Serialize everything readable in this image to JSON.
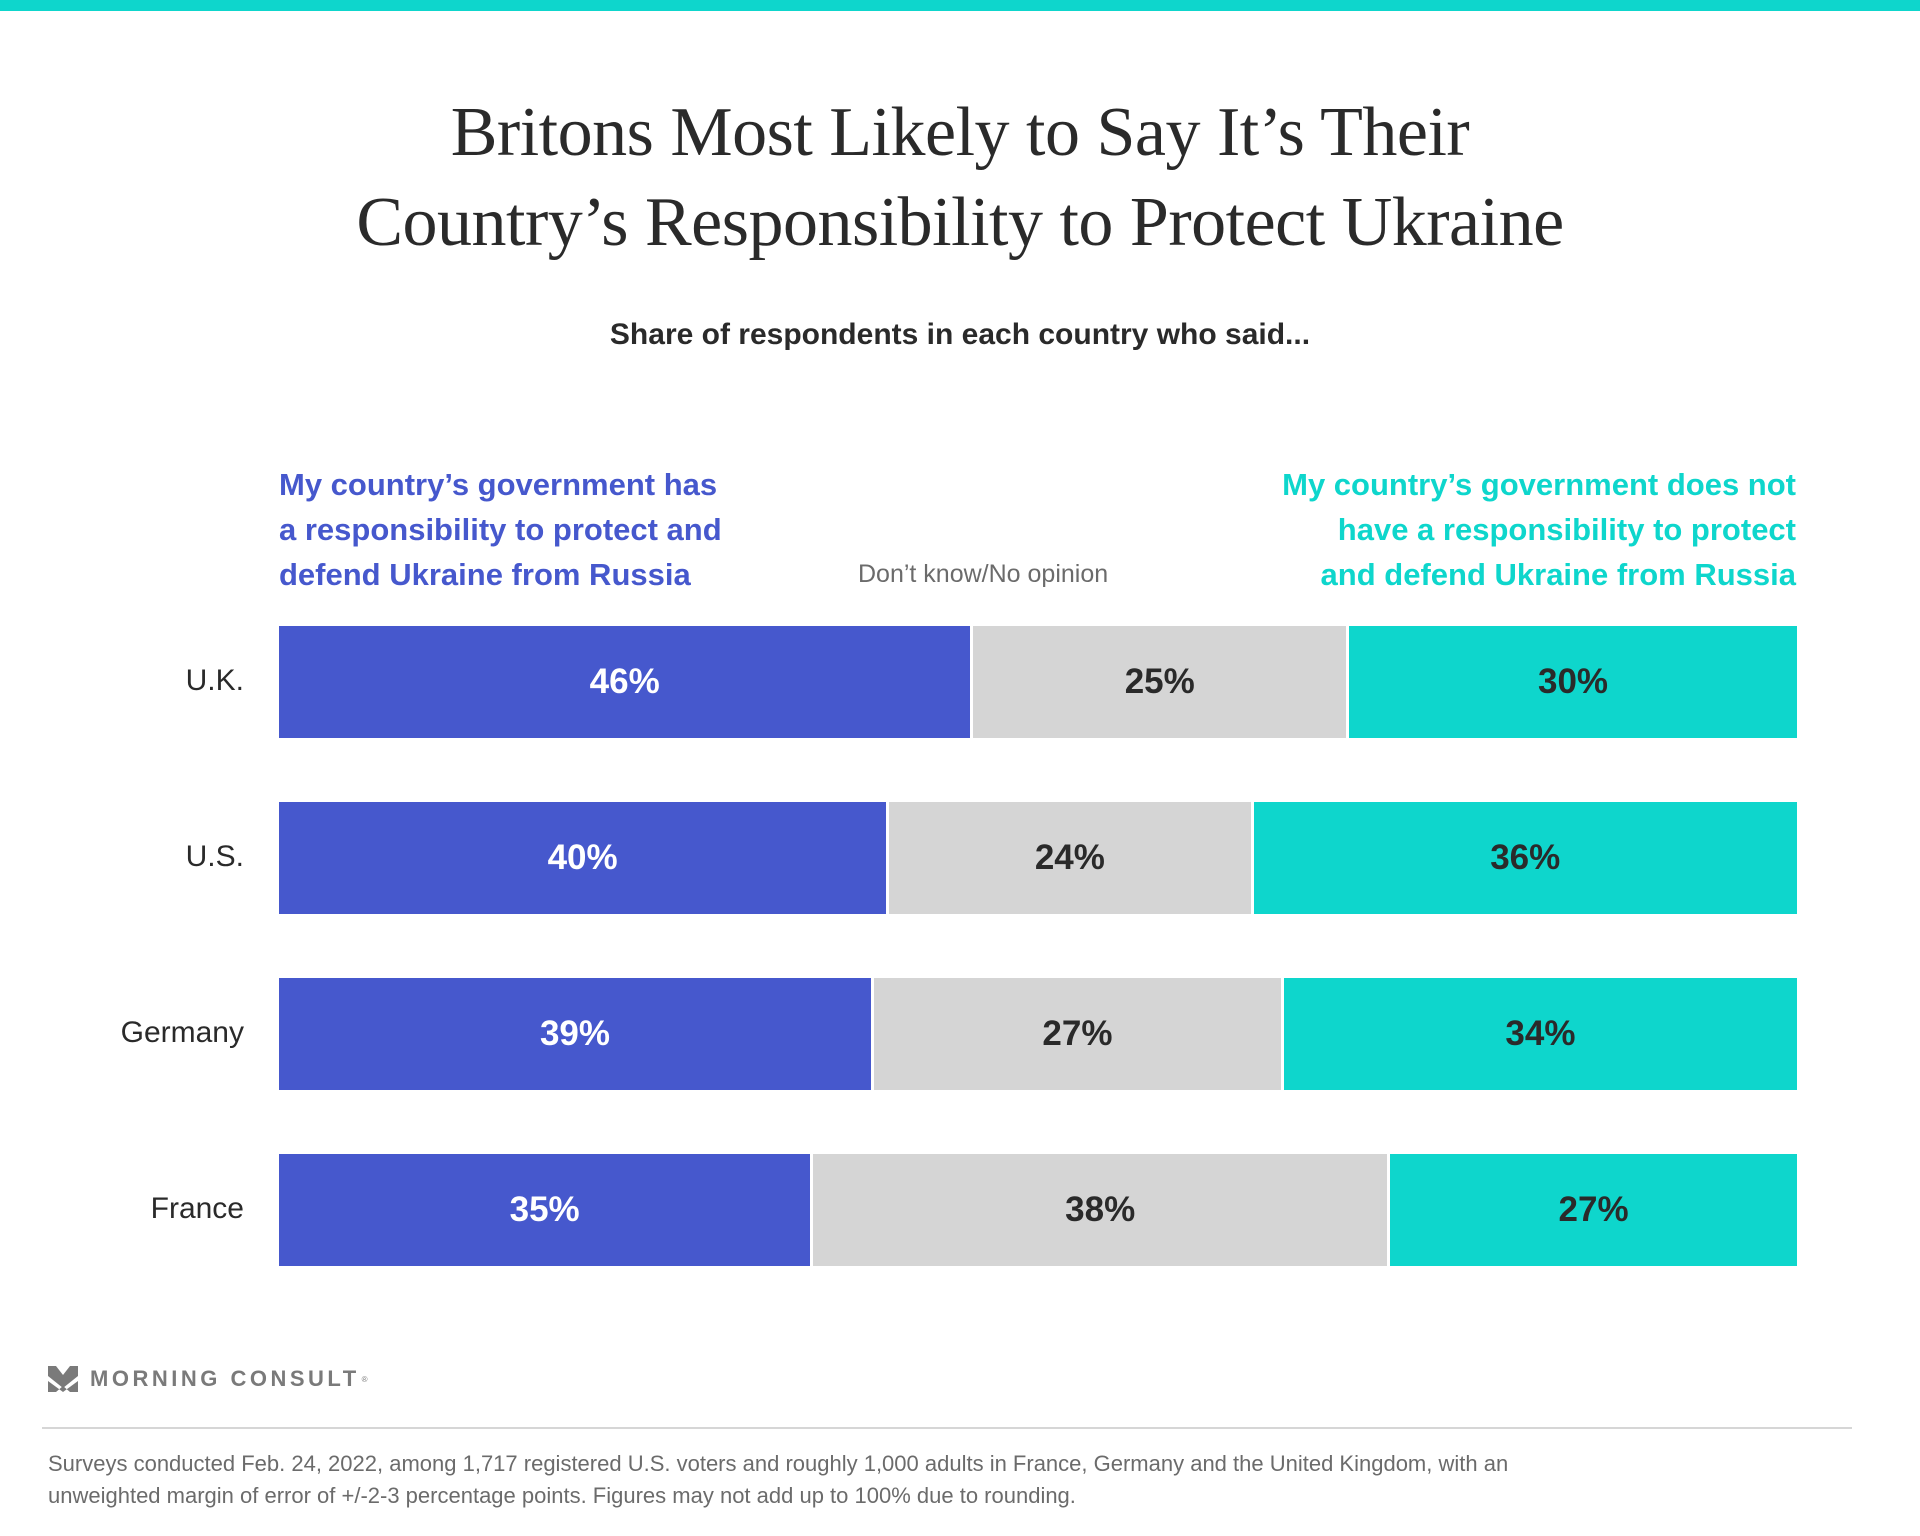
{
  "colors": {
    "accent_band": "#0ed6cc",
    "yes": "#4658cd",
    "dont_know": "#d5d5d5",
    "no": "#0ed6cc",
    "text_dark": "#2a2a2a",
    "text_gray": "#6b6b6b"
  },
  "title_lines": [
    "Britons Most Likely to Say It’s Their",
    "Country’s Responsibility to Protect Ukraine"
  ],
  "subtitle": "Share of respondents in each country who said...",
  "legend": {
    "yes_lines": [
      "My country’s government has",
      "a responsibility to protect and",
      "defend Ukraine from Russia"
    ],
    "dont_know": "Don’t know/No opinion",
    "no_lines": [
      "My country’s government does not",
      "have a responsibility to protect",
      "and defend Ukraine from Russia"
    ]
  },
  "chart_data": {
    "type": "bar",
    "orientation": "horizontal",
    "stacked": true,
    "title": "Britons Most Likely to Say It’s Their Country’s Responsibility to Protect Ukraine",
    "subtitle": "Share of respondents in each country who said...",
    "categories": [
      "U.K.",
      "U.S.",
      "Germany",
      "France"
    ],
    "series": [
      {
        "name": "My country’s government has a responsibility to protect and defend Ukraine from Russia",
        "key": "yes",
        "values": [
          46,
          40,
          39,
          35
        ],
        "labels": [
          "46%",
          "40%",
          "39%",
          "35%"
        ]
      },
      {
        "name": "Don’t know/No opinion",
        "key": "dk",
        "values": [
          25,
          24,
          27,
          38
        ],
        "labels": [
          "25%",
          "24%",
          "27%",
          "38%"
        ]
      },
      {
        "name": "My country’s government does not have a responsibility to protect and defend Ukraine from Russia",
        "key": "no",
        "values": [
          30,
          36,
          34,
          27
        ],
        "labels": [
          "30%",
          "36%",
          "34%",
          "27%"
        ]
      }
    ],
    "unit": "%",
    "grid": false,
    "legend_placement": "top"
  },
  "logo": {
    "text": "MORNING CONSULT",
    "registered": "®",
    "icon": "morning-consult-chevron-icon"
  },
  "footnote_lines": [
    "Surveys conducted Feb. 24, 2022, among 1,717 registered U.S. voters and roughly 1,000 adults in France, Germany and the United Kingdom, with an",
    "unweighted margin of error of +/-2-3 percentage points. Figures may not add up to 100% due to rounding."
  ]
}
